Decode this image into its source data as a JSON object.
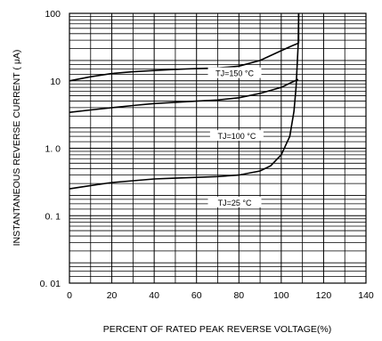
{
  "chart_data": {
    "type": "line",
    "title": "",
    "xlabel": "PERCENT OF RATED PEAK REVERSE VOLTAGE(%)",
    "ylabel": "INSTANTANEOUS REVERSE CURRENT  ( μA)",
    "x_ticks": [
      "0",
      "20",
      "40",
      "60",
      "80",
      "100",
      "120",
      "140"
    ],
    "y_ticks": [
      "0. 01",
      "0. 1",
      "1. 0",
      "10",
      "100"
    ],
    "xlim": [
      0,
      140
    ],
    "ylim": [
      0.01,
      100
    ],
    "y_scale": "log",
    "grid": true,
    "series": [
      {
        "name": "TJ=150 °C",
        "x": [
          0,
          10,
          20,
          30,
          40,
          50,
          60,
          70,
          80,
          90,
          100,
          105,
          108
        ],
        "y": [
          10,
          11.5,
          12.8,
          13.6,
          14.2,
          14.8,
          15.2,
          15.5,
          16.5,
          20,
          28,
          33,
          36
        ]
      },
      {
        "name": "TJ=100 °C",
        "x": [
          0,
          10,
          20,
          30,
          40,
          50,
          60,
          70,
          80,
          90,
          100,
          105,
          108
        ],
        "y": [
          3.4,
          3.7,
          4.0,
          4.3,
          4.6,
          4.8,
          5.0,
          5.2,
          5.6,
          6.5,
          8.0,
          9.5,
          10.5
        ]
      },
      {
        "name": "TJ=25 °C",
        "x": [
          0,
          10,
          20,
          30,
          40,
          50,
          60,
          70,
          80,
          90,
          95,
          100,
          104,
          106,
          107,
          108,
          108.2
        ],
        "y": [
          0.25,
          0.28,
          0.31,
          0.33,
          0.35,
          0.36,
          0.37,
          0.38,
          0.4,
          0.46,
          0.55,
          0.8,
          1.5,
          3.5,
          8,
          35,
          100
        ]
      }
    ],
    "annotations": [
      "TJ=150 °C",
      "TJ=100 °C",
      "TJ=25 °C"
    ]
  }
}
